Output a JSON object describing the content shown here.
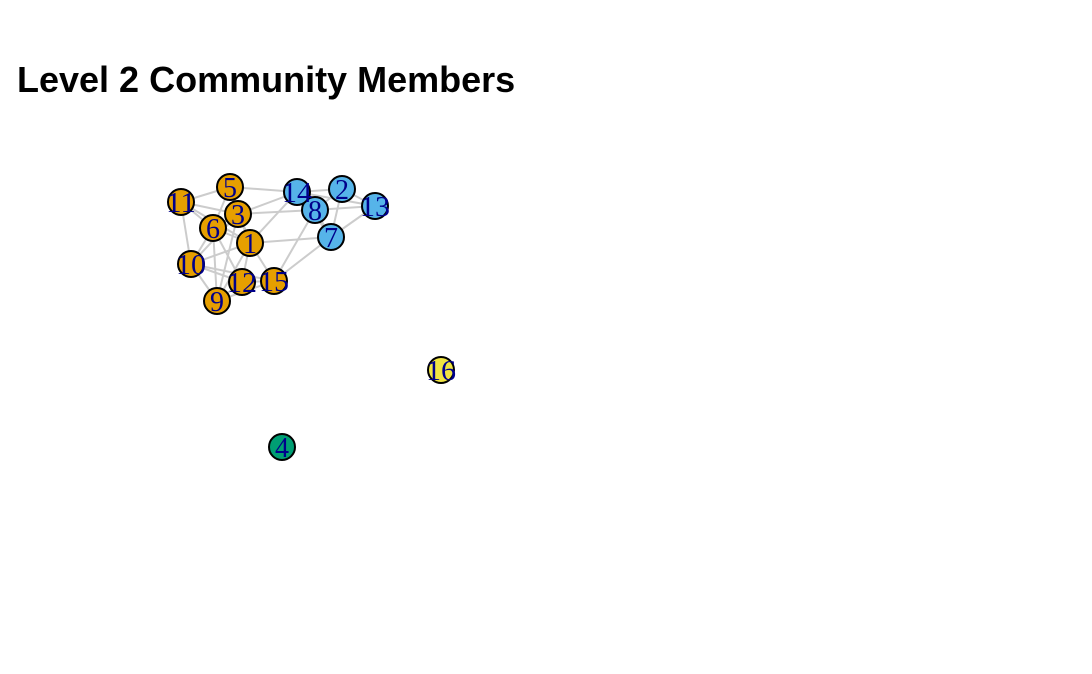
{
  "title": "Level 2 Community Members",
  "colors": {
    "community_1": "#e69f00",
    "community_2": "#56b4e9",
    "community_3": "#009e73",
    "community_4": "#f0e442",
    "edge": "#cccccc",
    "node_border": "#000000",
    "label": "#00008b"
  },
  "nodes": [
    {
      "id": "1",
      "label": "1",
      "community": "community_1"
    },
    {
      "id": "2",
      "label": "2",
      "community": "community_2"
    },
    {
      "id": "3",
      "label": "3",
      "community": "community_1"
    },
    {
      "id": "4",
      "label": "4",
      "community": "community_3"
    },
    {
      "id": "5",
      "label": "5",
      "community": "community_1"
    },
    {
      "id": "6",
      "label": "6",
      "community": "community_1"
    },
    {
      "id": "7",
      "label": "7",
      "community": "community_2"
    },
    {
      "id": "8",
      "label": "8",
      "community": "community_2"
    },
    {
      "id": "9",
      "label": "9",
      "community": "community_1"
    },
    {
      "id": "10",
      "label": "10",
      "community": "community_1"
    },
    {
      "id": "11",
      "label": "11",
      "community": "community_1"
    },
    {
      "id": "12",
      "label": "12",
      "community": "community_1"
    },
    {
      "id": "13",
      "label": "13",
      "community": "community_2"
    },
    {
      "id": "14",
      "label": "14",
      "community": "community_2"
    },
    {
      "id": "15",
      "label": "15",
      "community": "community_1"
    },
    {
      "id": "16",
      "label": "16",
      "community": "community_4"
    }
  ],
  "edges": [
    [
      "11",
      "5"
    ],
    [
      "11",
      "6"
    ],
    [
      "11",
      "10"
    ],
    [
      "11",
      "3"
    ],
    [
      "11",
      "1"
    ],
    [
      "5",
      "3"
    ],
    [
      "5",
      "14"
    ],
    [
      "5",
      "6"
    ],
    [
      "5",
      "1"
    ],
    [
      "3",
      "6"
    ],
    [
      "3",
      "1"
    ],
    [
      "3",
      "14"
    ],
    [
      "3",
      "8"
    ],
    [
      "3",
      "10"
    ],
    [
      "6",
      "1"
    ],
    [
      "6",
      "10"
    ],
    [
      "6",
      "12"
    ],
    [
      "6",
      "9"
    ],
    [
      "1",
      "12"
    ],
    [
      "1",
      "15"
    ],
    [
      "1",
      "9"
    ],
    [
      "1",
      "10"
    ],
    [
      "1",
      "7"
    ],
    [
      "1",
      "14"
    ],
    [
      "10",
      "12"
    ],
    [
      "10",
      "9"
    ],
    [
      "10",
      "15"
    ],
    [
      "12",
      "15"
    ],
    [
      "12",
      "9"
    ],
    [
      "15",
      "8"
    ],
    [
      "15",
      "7"
    ],
    [
      "15",
      "9"
    ],
    [
      "14",
      "2"
    ],
    [
      "14",
      "8"
    ],
    [
      "14",
      "13"
    ],
    [
      "14",
      "7"
    ],
    [
      "2",
      "8"
    ],
    [
      "2",
      "13"
    ],
    [
      "2",
      "7"
    ],
    [
      "8",
      "13"
    ],
    [
      "8",
      "7"
    ],
    [
      "13",
      "7"
    ],
    [
      "9",
      "3"
    ]
  ]
}
